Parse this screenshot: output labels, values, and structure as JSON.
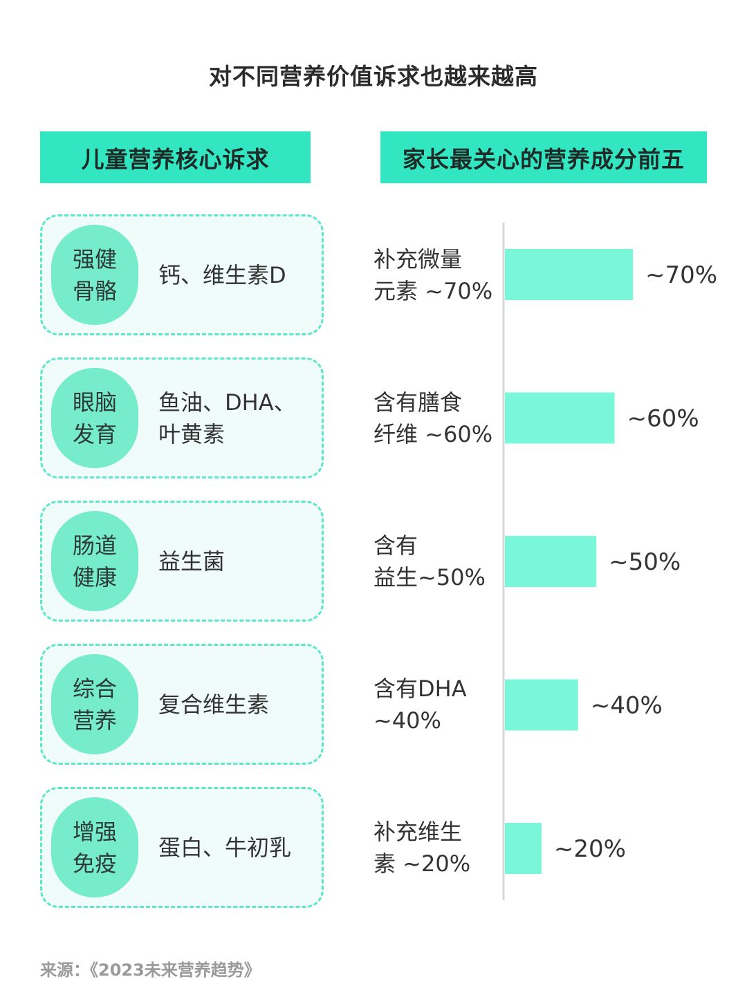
{
  "title": "对不同营养价值诉求也越来越高",
  "left_header": "儿童营养核心诉求",
  "right_header": "家长最关心的营养成分前五",
  "cards": [
    {
      "line1": "强健",
      "line2": "骨骼",
      "nutrient": "钙、维生素D"
    },
    {
      "line1": "眼脑",
      "line2": "发育",
      "nutrient": "鱼油、DHA、叶黄素"
    },
    {
      "line1": "肠道",
      "line2": "健康",
      "nutrient": "益生菌"
    },
    {
      "line1": "综合",
      "line2": "营养",
      "nutrient": "复合维生素"
    },
    {
      "line1": "增强",
      "line2": "免疫",
      "nutrient": "蛋白、牛初乳"
    }
  ],
  "chart_data": {
    "type": "bar",
    "orientation": "horizontal",
    "categories": [
      {
        "line1": "补充微量",
        "line2": "元素 ~70%"
      },
      {
        "line1": "含有膳食",
        "line2": "纤维 ~60%"
      },
      {
        "line1": "含有",
        "line2": "益生~50%"
      },
      {
        "line1": "含有DHA",
        "line2": "~40%"
      },
      {
        "line1": "补充维生",
        "line2": "素 ~20%"
      }
    ],
    "values": [
      70,
      60,
      50,
      40,
      20
    ],
    "value_labels": [
      "~70%",
      "~60%",
      "~50%",
      "~40%",
      "~20%"
    ],
    "unit": "%",
    "xlim": [
      0,
      100
    ],
    "grid": false,
    "bar_color": "#7af7d8",
    "axis_color": "#d6d6d6"
  },
  "source": "来源：《2023未来营养趋势》"
}
